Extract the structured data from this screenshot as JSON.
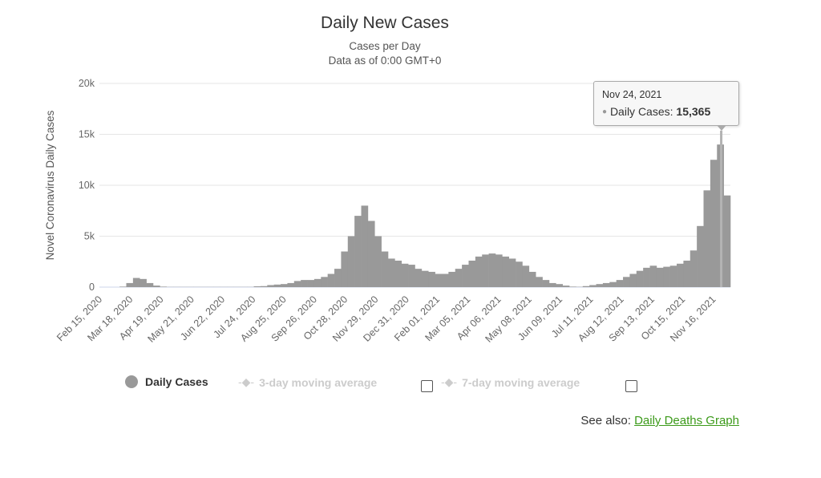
{
  "chart_data": {
    "type": "bar",
    "title": "Daily New Cases",
    "subtitle": [
      "Cases per Day",
      "Data as of 0:00 GMT+0"
    ],
    "ylabel": "Novel Coronavirus Daily Cases",
    "xlabel": "",
    "ylim": [
      0,
      20000
    ],
    "yticks": [
      0,
      5000,
      10000,
      15000,
      20000
    ],
    "ytick_labels": [
      "0",
      "5k",
      "10k",
      "15k",
      "20k"
    ],
    "x_start": "2020-02-15",
    "x_interval_days": 7,
    "x_span_days": 658,
    "xtick_interval_days": 32,
    "xtick_labels": [
      "Feb 15, 2020",
      "Mar 18, 2020",
      "Apr 19, 2020",
      "May 21, 2020",
      "Jun 22, 2020",
      "Jul 24, 2020",
      "Aug 25, 2020",
      "Sep 26, 2020",
      "Oct 28, 2020",
      "Nov 29, 2020",
      "Dec 31, 2020",
      "Feb 01, 2021",
      "Mar 05, 2021",
      "Apr 06, 2021",
      "May 08, 2021",
      "Jun 09, 2021",
      "Jul 11, 2021",
      "Aug 12, 2021",
      "Sep 13, 2021",
      "Oct 15, 2021",
      "Nov 16, 2021"
    ],
    "grid": true,
    "series": [
      {
        "name": "Daily Cases",
        "color": "#999999",
        "values": [
          0,
          0,
          0,
          50,
          400,
          900,
          800,
          400,
          150,
          50,
          20,
          20,
          20,
          20,
          20,
          20,
          20,
          20,
          20,
          20,
          20,
          20,
          20,
          80,
          100,
          200,
          250,
          300,
          400,
          600,
          700,
          700,
          800,
          1000,
          1300,
          1800,
          3500,
          5000,
          7000,
          8000,
          6500,
          5000,
          3500,
          2800,
          2600,
          2300,
          2200,
          1800,
          1600,
          1500,
          1300,
          1300,
          1500,
          1800,
          2200,
          2600,
          3000,
          3200,
          3300,
          3200,
          3000,
          2800,
          2500,
          2100,
          1500,
          1000,
          700,
          400,
          300,
          150,
          50,
          30,
          100,
          200,
          300,
          400,
          500,
          700,
          1000,
          1300,
          1600,
          1900,
          2100,
          1900,
          2000,
          2100,
          2300,
          2600,
          3600,
          6000,
          9500,
          12500,
          14000,
          9000
        ]
      },
      {
        "name": "3-day moving average",
        "enabled": false
      },
      {
        "name": "7-day moving average",
        "enabled": false
      }
    ],
    "tooltip": {
      "date": "Nov 24, 2021",
      "day_offset": 648,
      "label": "Daily Cases:",
      "value": 15365,
      "value_text": "15,365"
    },
    "legend_position": "bottom"
  },
  "footer": {
    "see_also": "See also:",
    "link": "Daily Deaths Graph"
  }
}
